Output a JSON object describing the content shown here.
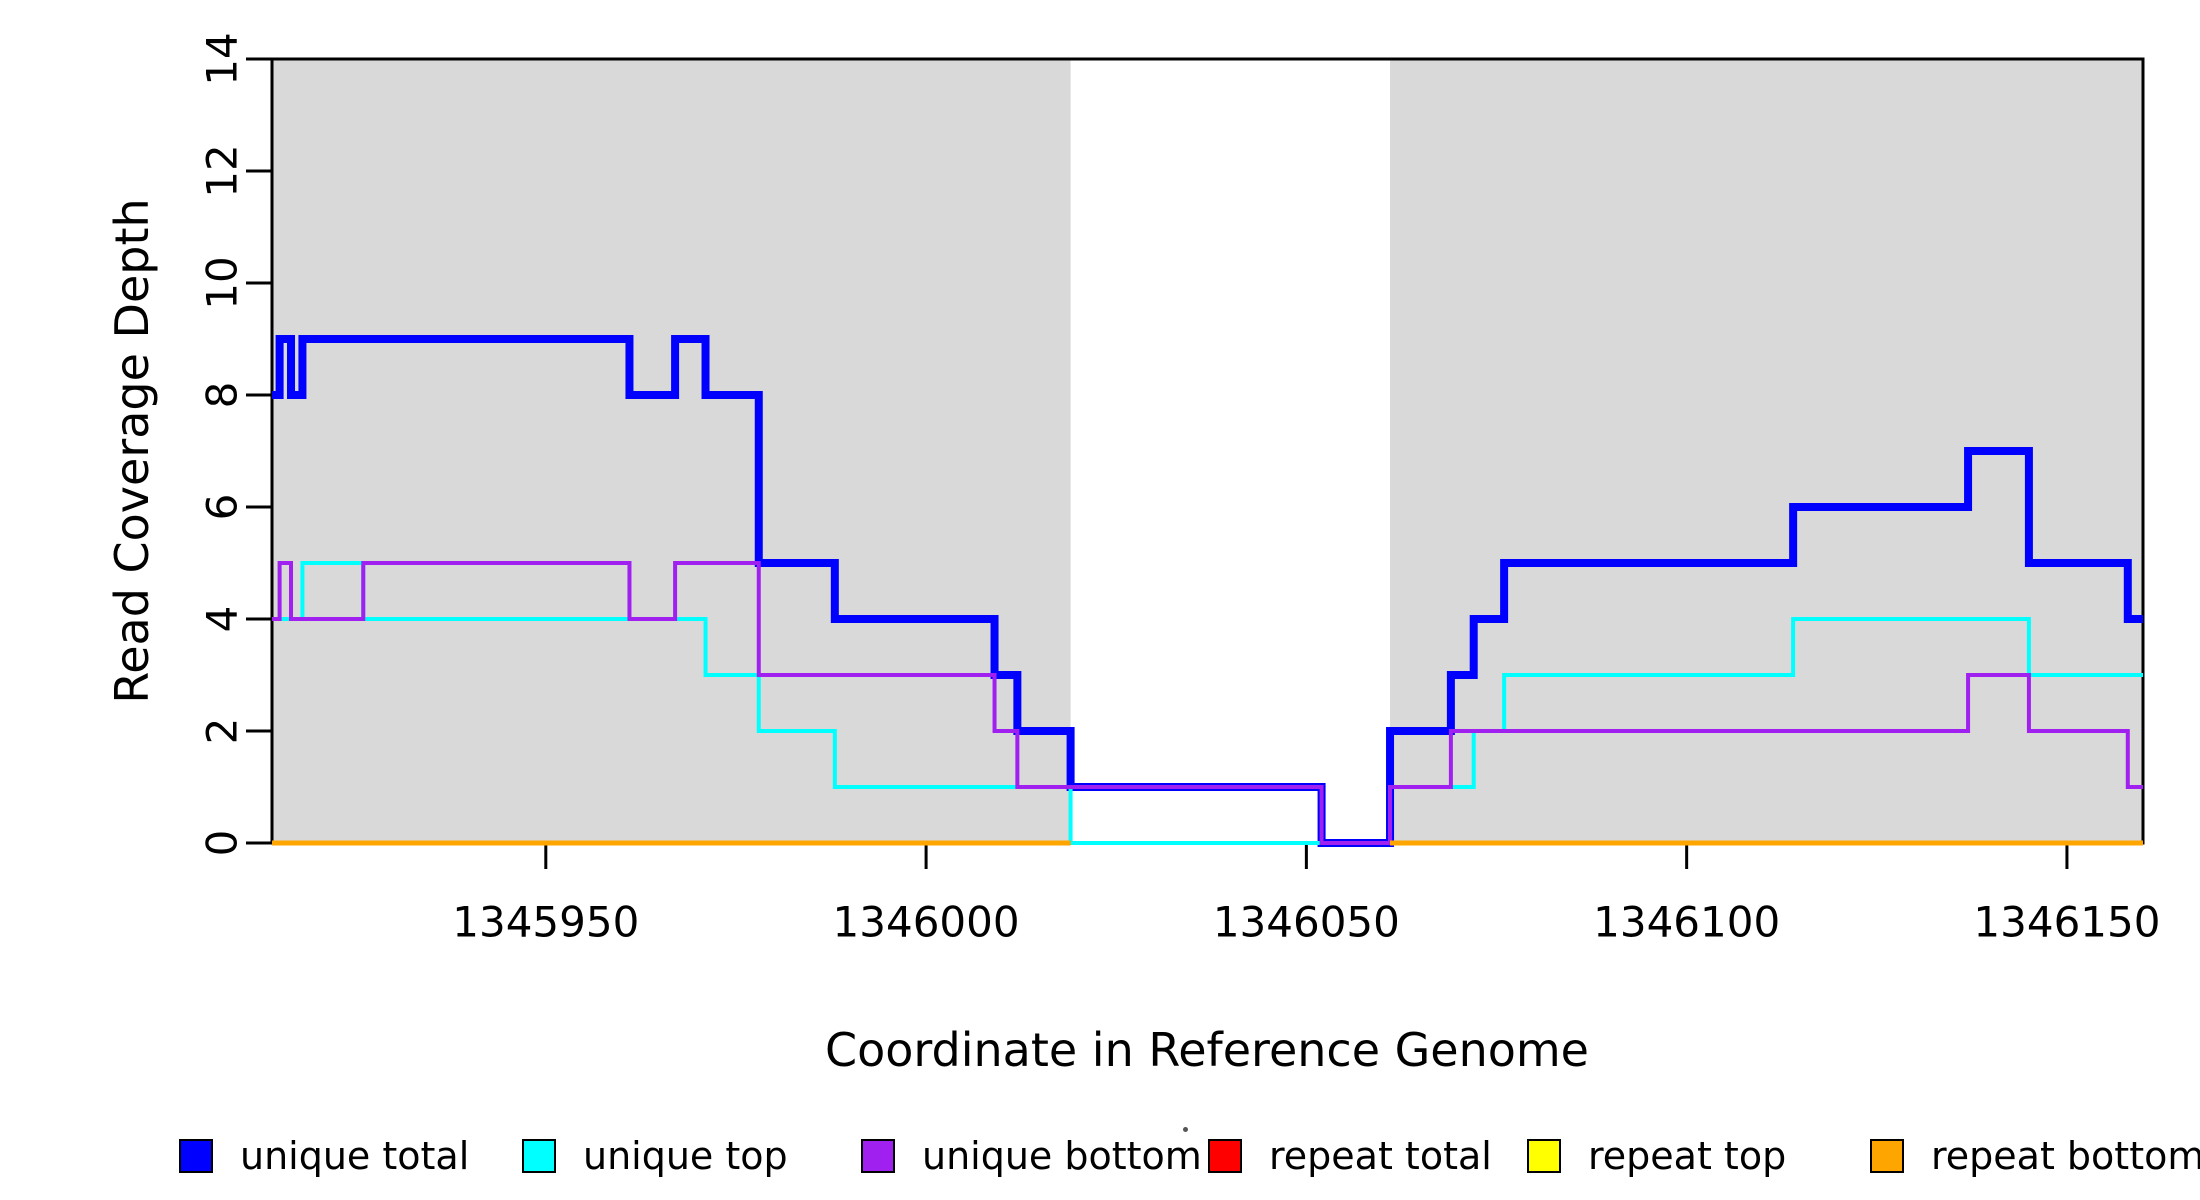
{
  "chart_data": {
    "type": "line",
    "subtype": "step-coverage",
    "title": "",
    "xlabel": "Coordinate in Reference Genome",
    "ylabel": "Read Coverage Depth",
    "xlim": [
      1345914,
      1346160
    ],
    "ylim": [
      0,
      14
    ],
    "x_ticks": [
      1345950,
      1346000,
      1346050,
      1346100,
      1346150
    ],
    "y_ticks": [
      0,
      2,
      4,
      6,
      8,
      10,
      12,
      14
    ],
    "grid": false,
    "band_color": "#D9D9D9",
    "shaded_regions": [
      {
        "name": "left-gray-band",
        "from": 1345914,
        "to": 1346019
      },
      {
        "name": "right-gray-band",
        "from": 1346061,
        "to": 1346160
      }
    ],
    "series": [
      {
        "name": "unique total",
        "color": "#0000FF",
        "width": 8,
        "start": 8,
        "steps": [
          [
            1345915,
            9
          ],
          [
            1345916.5,
            8
          ],
          [
            1345918,
            9
          ],
          [
            1345961,
            8
          ],
          [
            1345967,
            9
          ],
          [
            1345971,
            8
          ],
          [
            1345978,
            5
          ],
          [
            1345988,
            4
          ],
          [
            1346009,
            3
          ],
          [
            1346012,
            2
          ],
          [
            1346019,
            1
          ],
          [
            1346052,
            0
          ],
          [
            1346061,
            2
          ],
          [
            1346069,
            3
          ],
          [
            1346072,
            4
          ],
          [
            1346076,
            5
          ],
          [
            1346114,
            6
          ],
          [
            1346137,
            7
          ],
          [
            1346145,
            5
          ],
          [
            1346158,
            4
          ]
        ]
      },
      {
        "name": "unique top",
        "color": "#00FFFF",
        "width": 4,
        "start": 4,
        "steps": [
          [
            1345918,
            5
          ],
          [
            1345926,
            4
          ],
          [
            1345971,
            3
          ],
          [
            1345978,
            2
          ],
          [
            1345988,
            1
          ],
          [
            1346019,
            0
          ],
          [
            1346061,
            1
          ],
          [
            1346072,
            2
          ],
          [
            1346076,
            3
          ],
          [
            1346114,
            4
          ],
          [
            1346145,
            3
          ]
        ]
      },
      {
        "name": "unique bottom",
        "color": "#A020F0",
        "width": 4,
        "start": 4,
        "steps": [
          [
            1345915,
            5
          ],
          [
            1345916.5,
            4
          ],
          [
            1345926,
            5
          ],
          [
            1345961,
            4
          ],
          [
            1345967,
            5
          ],
          [
            1345978,
            3
          ],
          [
            1346009,
            2
          ],
          [
            1346012,
            1
          ],
          [
            1346052,
            0
          ],
          [
            1346061,
            1
          ],
          [
            1346069,
            2
          ],
          [
            1346137,
            3
          ],
          [
            1346145,
            2
          ],
          [
            1346158,
            1
          ]
        ]
      },
      {
        "name": "repeat total",
        "color": "#FF0000",
        "width": 4,
        "flat_segments": [
          {
            "from": 1345914,
            "to": 1346019,
            "value": 0
          },
          {
            "from": 1346061,
            "to": 1346160,
            "value": 0
          }
        ]
      },
      {
        "name": "repeat top",
        "color": "#FFFF00",
        "width": 4,
        "flat_segments": [
          {
            "from": 1345914,
            "to": 1346019,
            "value": 0
          },
          {
            "from": 1346061,
            "to": 1346160,
            "value": 0
          }
        ]
      },
      {
        "name": "repeat bottom",
        "color": "#FFA500",
        "width": 5,
        "flat_segments": [
          {
            "from": 1345914,
            "to": 1346019,
            "value": 0
          },
          {
            "from": 1346061,
            "to": 1346160,
            "value": 0
          }
        ]
      }
    ],
    "legend_position": "bottom"
  },
  "legend": {
    "items": [
      {
        "label": "unique total",
        "color": "#0000FF"
      },
      {
        "label": "unique top",
        "color": "#00FFFF"
      },
      {
        "label": "unique bottom",
        "color": "#A020F0"
      },
      {
        "label": "repeat total",
        "color": "#FF0000"
      },
      {
        "label": "repeat top",
        "color": "#FFFF00"
      },
      {
        "label": "repeat bottom",
        "color": "#FFA500"
      }
    ]
  }
}
